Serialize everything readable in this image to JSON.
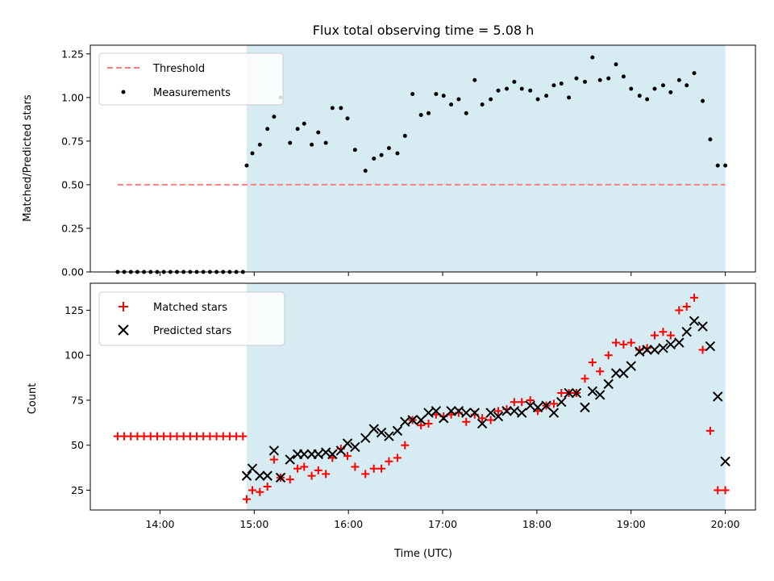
{
  "chart_data": {
    "title": "Flux total observing time = 5.08 h",
    "xlabel": "Time (UTC)",
    "x_units": "hours (UTC, decimal)",
    "xticks": [
      {
        "value": 14,
        "label": "14:00"
      },
      {
        "value": 15,
        "label": "15:00"
      },
      {
        "value": 16,
        "label": "16:00"
      },
      {
        "value": 17,
        "label": "17:00"
      },
      {
        "value": 18,
        "label": "18:00"
      },
      {
        "value": 19,
        "label": "19:00"
      },
      {
        "value": 20,
        "label": "20:00"
      }
    ],
    "xlim": [
      13.26,
      20.32
    ],
    "shaded_span": {
      "x0": 14.92,
      "x1": 20.0,
      "color": "#add8e6"
    },
    "panels": [
      {
        "type": "scatter",
        "ylabel": "Matched/Predicted stars",
        "ylim": [
          0,
          1.3
        ],
        "yticks": [
          {
            "value": 0,
            "label": "0.00"
          },
          {
            "value": 0.25,
            "label": "0.25"
          },
          {
            "value": 0.5,
            "label": "0.50"
          },
          {
            "value": 0.75,
            "label": "0.75"
          },
          {
            "value": 1.0,
            "label": "1.00"
          },
          {
            "value": 1.25,
            "label": "1.25"
          }
        ],
        "legend": {
          "placement": "upper-left",
          "entries": [
            "Threshold",
            "Measurements"
          ]
        },
        "series": [
          {
            "name": "Threshold",
            "style": "dashed-line",
            "color": "#ff7f7f",
            "x": [
              13.55,
              20.0
            ],
            "y": [
              0.5,
              0.5
            ]
          },
          {
            "name": "Measurements",
            "style": "dot",
            "color": "#000000",
            "x": [
              13.55,
              13.62,
              13.69,
              13.76,
              13.83,
              13.9,
              13.97,
              14.04,
              14.11,
              14.18,
              14.25,
              14.32,
              14.39,
              14.46,
              14.53,
              14.6,
              14.67,
              14.74,
              14.81,
              14.88,
              14.92,
              14.98,
              15.06,
              15.14,
              15.21,
              15.28,
              15.38,
              15.46,
              15.53,
              15.61,
              15.68,
              15.76,
              15.83,
              15.92,
              15.99,
              16.07,
              16.18,
              16.27,
              16.35,
              16.43,
              16.52,
              16.6,
              16.68,
              16.77,
              16.85,
              16.93,
              17.01,
              17.09,
              17.17,
              17.25,
              17.34,
              17.42,
              17.51,
              17.59,
              17.68,
              17.76,
              17.84,
              17.93,
              18.01,
              18.1,
              18.18,
              18.26,
              18.34,
              18.42,
              18.51,
              18.59,
              18.67,
              18.76,
              18.84,
              18.92,
              19.0,
              19.09,
              19.17,
              19.25,
              19.34,
              19.42,
              19.51,
              19.59,
              19.67,
              19.76,
              19.84,
              19.92,
              20.0
            ],
            "y": [
              0,
              0,
              0,
              0,
              0,
              0,
              0,
              0,
              0,
              0,
              0,
              0,
              0,
              0,
              0,
              0,
              0,
              0,
              0,
              0,
              0.61,
              0.68,
              0.73,
              0.82,
              0.89,
              1.0,
              0.74,
              0.82,
              0.85,
              0.73,
              0.8,
              0.74,
              0.94,
              0.94,
              0.88,
              0.7,
              0.58,
              0.65,
              0.67,
              0.71,
              0.68,
              0.78,
              1.02,
              0.9,
              0.91,
              1.02,
              1.01,
              0.96,
              0.99,
              0.91,
              1.1,
              0.96,
              0.99,
              1.04,
              1.05,
              1.09,
              1.05,
              1.04,
              0.99,
              1.01,
              1.07,
              1.08,
              1.0,
              1.11,
              1.09,
              1.23,
              1.1,
              1.11,
              1.19,
              1.12,
              1.05,
              1.01,
              0.99,
              1.05,
              1.07,
              1.03,
              1.1,
              1.07,
              1.14,
              0.98,
              0.76,
              0.61,
              0.61
            ]
          }
        ]
      },
      {
        "type": "scatter",
        "ylabel": "Count",
        "ylim": [
          14,
          140
        ],
        "yticks": [
          {
            "value": 25,
            "label": "25"
          },
          {
            "value": 50,
            "label": "50"
          },
          {
            "value": 75,
            "label": "75"
          },
          {
            "value": 100,
            "label": "100"
          },
          {
            "value": 125,
            "label": "125"
          }
        ],
        "legend": {
          "placement": "upper-left",
          "entries": [
            "Matched stars",
            "Predicted stars"
          ]
        },
        "series": [
          {
            "name": "Matched stars",
            "style": "plus",
            "color": "#ff0000",
            "x": [
              13.55,
              13.62,
              13.69,
              13.76,
              13.83,
              13.9,
              13.97,
              14.04,
              14.11,
              14.18,
              14.25,
              14.32,
              14.39,
              14.46,
              14.53,
              14.6,
              14.67,
              14.74,
              14.81,
              14.88,
              14.92,
              14.98,
              15.06,
              15.14,
              15.21,
              15.28,
              15.38,
              15.46,
              15.53,
              15.61,
              15.68,
              15.76,
              15.83,
              15.92,
              15.99,
              16.07,
              16.18,
              16.27,
              16.35,
              16.43,
              16.52,
              16.6,
              16.68,
              16.77,
              16.85,
              16.93,
              17.01,
              17.09,
              17.17,
              17.25,
              17.34,
              17.42,
              17.51,
              17.59,
              17.68,
              17.76,
              17.84,
              17.93,
              18.01,
              18.1,
              18.18,
              18.26,
              18.34,
              18.42,
              18.51,
              18.59,
              18.67,
              18.76,
              18.84,
              18.92,
              19.0,
              19.09,
              19.17,
              19.25,
              19.34,
              19.42,
              19.51,
              19.59,
              19.67,
              19.76,
              19.84,
              19.92,
              20.0
            ],
            "y": [
              55,
              55,
              55,
              55,
              55,
              55,
              55,
              55,
              55,
              55,
              55,
              55,
              55,
              55,
              55,
              55,
              55,
              55,
              55,
              55,
              20,
              25,
              24,
              27,
              42,
              32,
              31,
              37,
              38,
              33,
              36,
              34,
              43,
              48,
              44,
              38,
              34,
              37,
              37,
              41,
              43,
              50,
              64,
              61,
              62,
              67,
              66,
              67,
              68,
              63,
              67,
              65,
              64,
              69,
              70,
              74,
              74,
              75,
              69,
              72,
              73,
              79,
              79,
              79,
              87,
              96,
              91,
              100,
              107,
              106,
              107,
              103,
              104,
              111,
              113,
              111,
              125,
              127,
              132,
              103,
              58,
              25,
              25
            ]
          },
          {
            "name": "Predicted stars",
            "style": "x",
            "color": "#000000",
            "x": [
              14.92,
              14.98,
              15.06,
              15.14,
              15.21,
              15.28,
              15.38,
              15.46,
              15.53,
              15.61,
              15.68,
              15.76,
              15.83,
              15.92,
              15.99,
              16.07,
              16.18,
              16.27,
              16.35,
              16.43,
              16.52,
              16.6,
              16.68,
              16.77,
              16.85,
              16.93,
              17.01,
              17.09,
              17.17,
              17.25,
              17.34,
              17.42,
              17.51,
              17.59,
              17.68,
              17.76,
              17.84,
              17.93,
              18.01,
              18.1,
              18.18,
              18.26,
              18.34,
              18.42,
              18.51,
              18.59,
              18.67,
              18.76,
              18.84,
              18.92,
              19.0,
              19.09,
              19.17,
              19.25,
              19.34,
              19.42,
              19.51,
              19.59,
              19.67,
              19.76,
              19.84,
              19.92,
              20.0
            ],
            "y": [
              33,
              37,
              33,
              33,
              47,
              32,
              42,
              45,
              45,
              45,
              45,
              46,
              45,
              47,
              51,
              49,
              54,
              59,
              57,
              55,
              58,
              63,
              64,
              64,
              68,
              69,
              65,
              69,
              69,
              68,
              68,
              62,
              68,
              66,
              69,
              69,
              68,
              72,
              71,
              72,
              68,
              74,
              79,
              79,
              71,
              80,
              78,
              84,
              90,
              90,
              94,
              102,
              103,
              103,
              104,
              106,
              107,
              113,
              119,
              116,
              105,
              77,
              41
            ]
          }
        ]
      }
    ]
  }
}
